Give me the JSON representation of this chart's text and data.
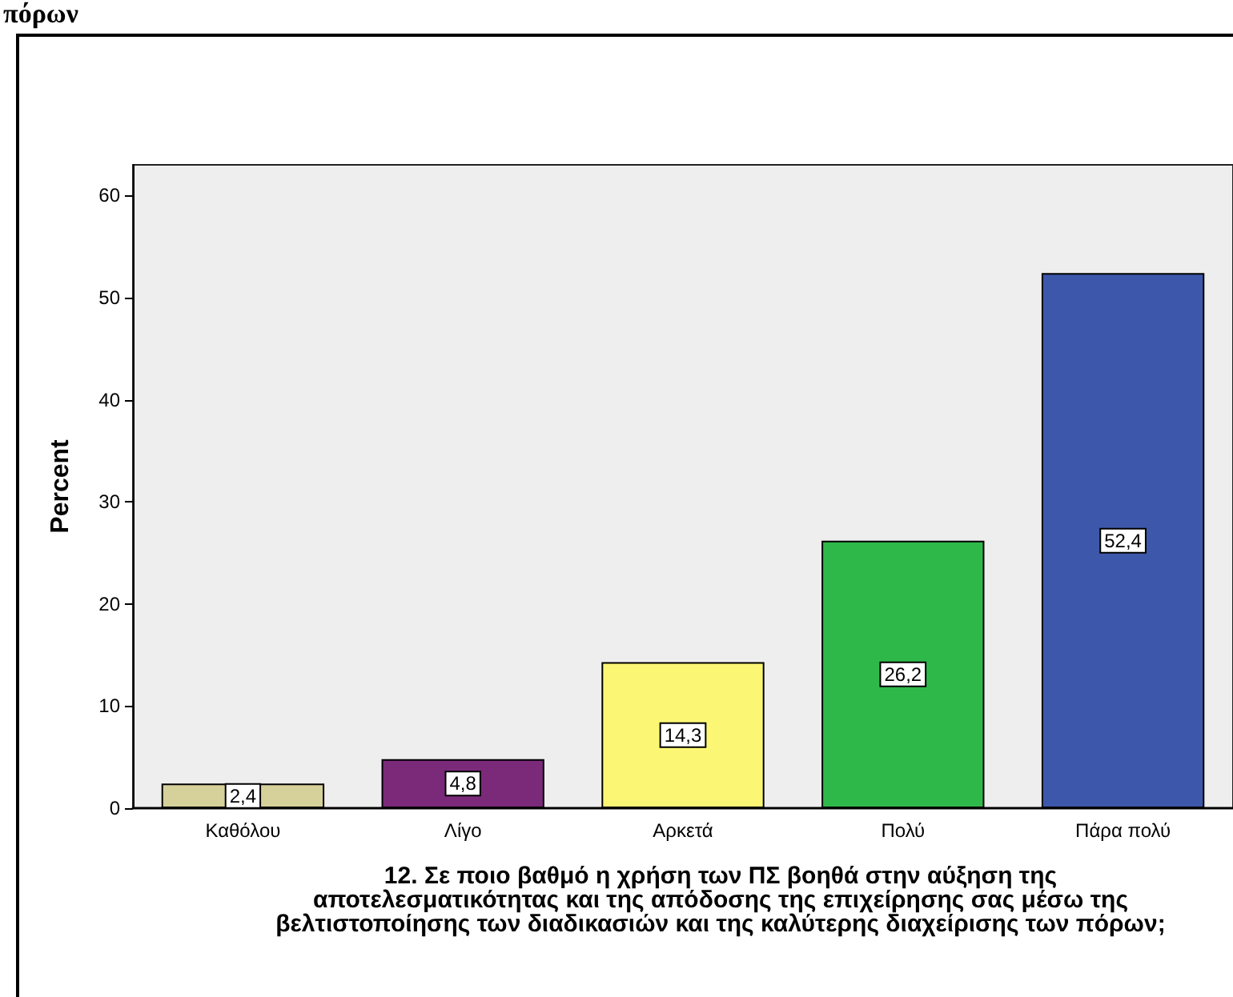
{
  "chart_data": {
    "type": "bar",
    "title": "πόρων",
    "xlabel": "12.  Σε ποιο βαθμό η χρήση των ΠΣ βοηθά στην αύξηση της αποτελεσματικότητας και της απόδοσης της επιχείρησης σας μέσω της βελτιστοποίησης των διαδικασιών και της καλύτερης διαχείρισης των πόρων;",
    "ylabel": "Percent",
    "categories": [
      "Καθόλου",
      "Λίγο",
      "Αρκετά",
      "Πολύ",
      "Πάρα πολύ"
    ],
    "values": [
      2.4,
      4.8,
      14.3,
      26.2,
      52.4
    ],
    "colors": [
      "#d6d09a",
      "#7b2a7a",
      "#fbf775",
      "#2fb84a",
      "#3d58aa"
    ],
    "value_labels": [
      "2,4",
      "4,8",
      "14,3",
      "26,2",
      "52,4"
    ],
    "ylim": [
      0,
      63
    ],
    "yticks": [
      0,
      10,
      20,
      30,
      40,
      50,
      60
    ],
    "grid": false
  }
}
